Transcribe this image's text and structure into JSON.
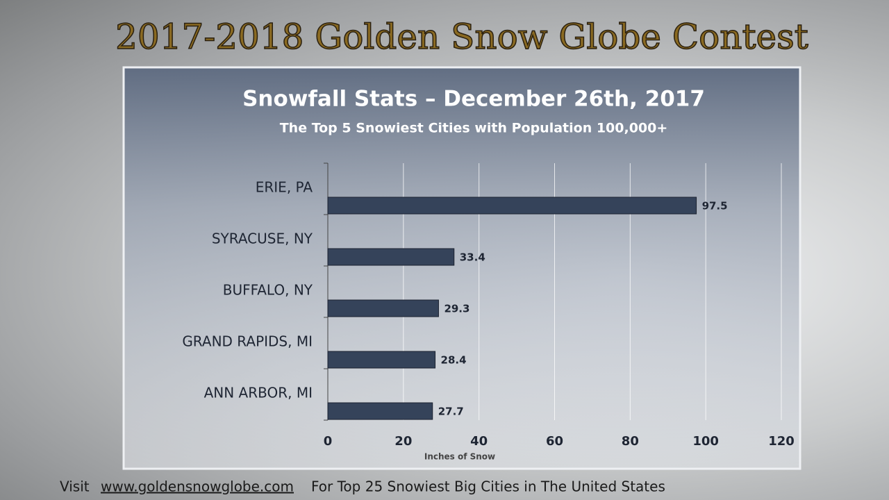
{
  "header": {
    "title": "2017-2018  Golden Snow Globe Contest"
  },
  "chart_data": {
    "type": "bar",
    "orientation": "horizontal",
    "title": "Snowfall Stats – December 26th, 2017",
    "subtitle": "The Top 5 Snowiest Cities with Population 100,000+",
    "x_label": "Inches of Snow",
    "categories": [
      "ERIE, PA",
      "SYRACUSE, NY",
      "BUFFALO, NY",
      "GRAND RAPIDS, MI",
      "ANN ARBOR, MI"
    ],
    "values": [
      97.5,
      33.4,
      29.3,
      28.4,
      27.7
    ],
    "color": "#35435a",
    "xlim": [
      0,
      120
    ],
    "xticks": [
      0,
      20,
      40,
      60,
      80,
      100,
      120
    ],
    "grid": true
  },
  "footer": {
    "prefix": "Visit",
    "link": "www.goldensnowglobe.com",
    "suffix": "For Top 25 Snowiest Big Cities in The United States"
  }
}
